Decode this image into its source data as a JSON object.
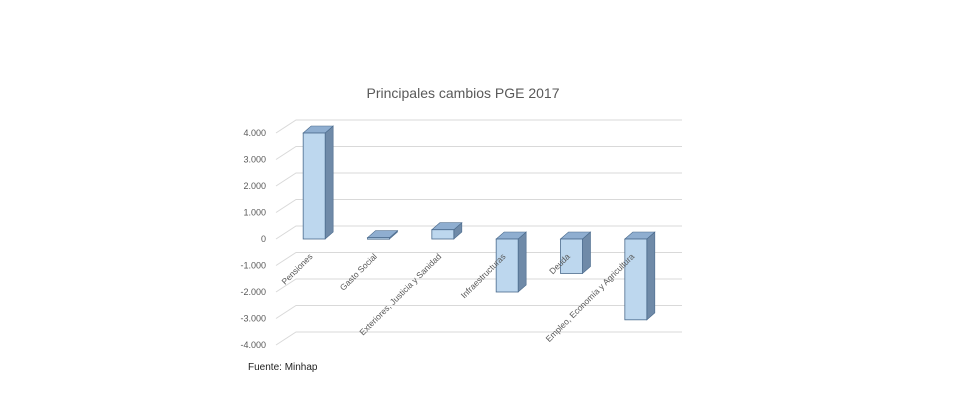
{
  "chart_data": {
    "type": "bar",
    "title": "Principales cambios PGE 2017",
    "categories": [
      "Pensiones",
      "Gasto Social",
      "Exteriores, Justicia y Sanidad",
      "Infraestructuras",
      "Deuda",
      "Empleo, Economía y Agricultura"
    ],
    "values": [
      4000,
      50,
      350,
      -2000,
      -1300,
      -3050
    ],
    "ylim": [
      -4000,
      4000
    ],
    "yticks": [
      -4000,
      -3000,
      -2000,
      -1000,
      0,
      1000,
      2000,
      3000,
      4000
    ],
    "ytick_labels": [
      "-4.000",
      "-3.000",
      "-2.000",
      "-1.000",
      "0",
      "1.000",
      "2.000",
      "3.000",
      "4.000"
    ],
    "grid": true,
    "legend": "none",
    "style": "3d-column",
    "colors": {
      "bar_front": "#bdd7ee",
      "bar_side": "#6f8aa8",
      "bar_top": "#8faed0",
      "grid": "#d9d9d9",
      "text": "#595959"
    }
  },
  "source": "Fuente: Minhap"
}
